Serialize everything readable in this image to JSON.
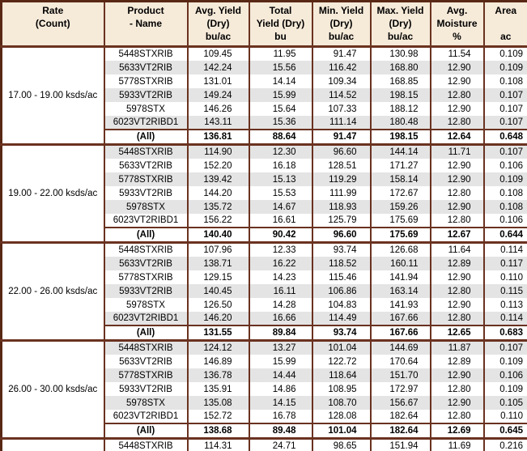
{
  "table": {
    "columns": [
      {
        "id": "rate",
        "label": "Rate\n(Count)"
      },
      {
        "id": "product",
        "label": "Product\n- Name"
      },
      {
        "id": "avg_yield",
        "label": "Avg. Yield\n(Dry)\nbu/ac"
      },
      {
        "id": "total_yield",
        "label": "Total\nYield (Dry)\nbu"
      },
      {
        "id": "min_yield",
        "label": "Min. Yield\n(Dry)\nbu/ac"
      },
      {
        "id": "max_yield",
        "label": "Max. Yield\n(Dry)\nbu/ac"
      },
      {
        "id": "moisture",
        "label": "Avg.\nMoisture\n%"
      },
      {
        "id": "area",
        "label": "Area\n\nac"
      }
    ],
    "groups": [
      {
        "rate_label": "17.00 - 19.00 ksds/ac",
        "rows": [
          [
            "5448STXRIB",
            "109.45",
            "11.95",
            "91.47",
            "130.98",
            "11.54",
            "0.109"
          ],
          [
            "5633VT2RIB",
            "142.24",
            "15.56",
            "116.42",
            "168.80",
            "12.90",
            "0.109"
          ],
          [
            "5778STXRIB",
            "131.01",
            "14.14",
            "109.34",
            "168.85",
            "12.90",
            "0.108"
          ],
          [
            "5933VT2RIB",
            "149.24",
            "15.99",
            "114.52",
            "198.15",
            "12.80",
            "0.107"
          ],
          [
            "5978STX",
            "146.26",
            "15.64",
            "107.33",
            "188.12",
            "12.90",
            "0.107"
          ],
          [
            "6023VT2RIBD1",
            "143.11",
            "15.36",
            "111.14",
            "180.48",
            "12.80",
            "0.107"
          ]
        ],
        "all_row": [
          "(All)",
          "136.81",
          "88.64",
          "91.47",
          "198.15",
          "12.64",
          "0.648"
        ]
      },
      {
        "rate_label": "19.00 - 22.00 ksds/ac",
        "rows": [
          [
            "5448STXRIB",
            "114.90",
            "12.30",
            "96.60",
            "144.14",
            "11.71",
            "0.107"
          ],
          [
            "5633VT2RIB",
            "152.20",
            "16.18",
            "128.51",
            "171.27",
            "12.90",
            "0.106"
          ],
          [
            "5778STXRIB",
            "139.42",
            "15.13",
            "119.29",
            "158.14",
            "12.90",
            "0.109"
          ],
          [
            "5933VT2RIB",
            "144.20",
            "15.53",
            "111.99",
            "172.67",
            "12.80",
            "0.108"
          ],
          [
            "5978STX",
            "135.72",
            "14.67",
            "118.93",
            "159.26",
            "12.90",
            "0.108"
          ],
          [
            "6023VT2RIBD1",
            "156.22",
            "16.61",
            "125.79",
            "175.69",
            "12.80",
            "0.106"
          ]
        ],
        "all_row": [
          "(All)",
          "140.40",
          "90.42",
          "96.60",
          "175.69",
          "12.67",
          "0.644"
        ]
      },
      {
        "rate_label": "22.00 - 26.00 ksds/ac",
        "rows": [
          [
            "5448STXRIB",
            "107.96",
            "12.33",
            "93.74",
            "126.68",
            "11.64",
            "0.114"
          ],
          [
            "5633VT2RIB",
            "138.71",
            "16.22",
            "118.52",
            "160.11",
            "12.89",
            "0.117"
          ],
          [
            "5778STXRIB",
            "129.15",
            "14.23",
            "115.46",
            "141.94",
            "12.90",
            "0.110"
          ],
          [
            "5933VT2RIB",
            "140.45",
            "16.11",
            "106.86",
            "163.14",
            "12.80",
            "0.115"
          ],
          [
            "5978STX",
            "126.50",
            "14.28",
            "104.83",
            "141.93",
            "12.90",
            "0.113"
          ],
          [
            "6023VT2RIBD1",
            "146.20",
            "16.66",
            "114.49",
            "167.66",
            "12.80",
            "0.114"
          ]
        ],
        "all_row": [
          "(All)",
          "131.55",
          "89.84",
          "93.74",
          "167.66",
          "12.65",
          "0.683"
        ]
      },
      {
        "rate_label": "26.00 - 30.00 ksds/ac",
        "rows": [
          [
            "5448STXRIB",
            "124.12",
            "13.27",
            "101.04",
            "144.69",
            "11.87",
            "0.107"
          ],
          [
            "5633VT2RIB",
            "146.89",
            "15.99",
            "122.72",
            "170.64",
            "12.89",
            "0.109"
          ],
          [
            "5778STXRIB",
            "136.78",
            "14.44",
            "118.64",
            "151.70",
            "12.90",
            "0.106"
          ],
          [
            "5933VT2RIB",
            "135.91",
            "14.86",
            "108.95",
            "172.97",
            "12.80",
            "0.109"
          ],
          [
            "5978STX",
            "135.08",
            "14.15",
            "108.70",
            "156.67",
            "12.90",
            "0.105"
          ],
          [
            "6023VT2RIBD1",
            "152.72",
            "16.78",
            "128.08",
            "182.64",
            "12.80",
            "0.110"
          ]
        ],
        "all_row": [
          "(All)",
          "138.68",
          "89.48",
          "101.04",
          "182.64",
          "12.69",
          "0.645"
        ]
      }
    ],
    "partial_row": [
      "5448STXRIB",
      "114.31",
      "24.71",
      "98.65",
      "151.94",
      "11.69",
      "0.216"
    ]
  },
  "colors": {
    "border": "#6a3220",
    "border_outer": "#582815",
    "header_bg": "#f6ead9",
    "stripe": "#e4e4e4",
    "row_bg": "#ffffff",
    "text": "#000000"
  }
}
